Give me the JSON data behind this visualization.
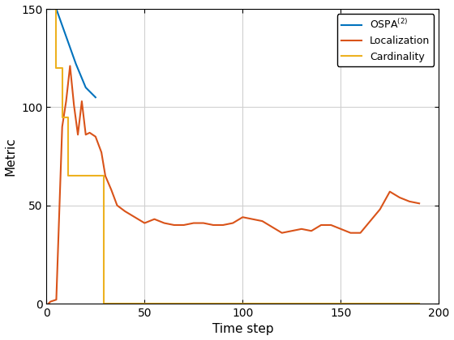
{
  "title": "",
  "xlabel": "Time step",
  "ylabel": "Metric",
  "xlim": [
    0,
    200
  ],
  "ylim": [
    0,
    150
  ],
  "xticks": [
    0,
    50,
    100,
    150,
    200
  ],
  "yticks": [
    0,
    50,
    100,
    150
  ],
  "ospa_color": "#0072BD",
  "loc_color": "#D95319",
  "card_color": "#EDB120",
  "line_width": 1.5,
  "legend_labels": [
    "OSPA$^{(2)}$",
    "Localization",
    "Cardinality"
  ],
  "background_color": "#FFFFFF",
  "grid_color": "#D0D0D0",
  "t_ospa": [
    1,
    5,
    10,
    15,
    20,
    25
  ],
  "v_ospa": [
    150,
    150,
    136,
    122,
    110,
    105
  ],
  "t_loc": [
    1,
    2,
    5,
    8,
    10,
    12,
    14,
    16,
    18,
    20,
    22,
    25,
    28,
    30,
    33,
    36,
    40,
    45,
    50,
    55,
    60,
    65,
    70,
    75,
    80,
    85,
    90,
    95,
    100,
    105,
    110,
    115,
    120,
    125,
    130,
    135,
    140,
    145,
    150,
    155,
    160,
    165,
    170,
    175,
    180,
    185,
    190
  ],
  "v_loc": [
    0,
    1,
    2,
    90,
    103,
    121,
    101,
    86,
    103,
    86,
    87,
    85,
    77,
    65,
    58,
    50,
    47,
    44,
    41,
    43,
    41,
    40,
    40,
    41,
    41,
    40,
    40,
    41,
    44,
    43,
    42,
    39,
    36,
    37,
    38,
    37,
    40,
    40,
    38,
    36,
    36,
    42,
    48,
    57,
    54,
    52,
    51
  ],
  "t_card": [
    1,
    5,
    5,
    8,
    8,
    11,
    11,
    14,
    14,
    29,
    29,
    30,
    190
  ],
  "v_card": [
    150,
    150,
    120,
    120,
    95,
    95,
    65,
    65,
    65,
    65,
    0,
    0,
    0
  ]
}
